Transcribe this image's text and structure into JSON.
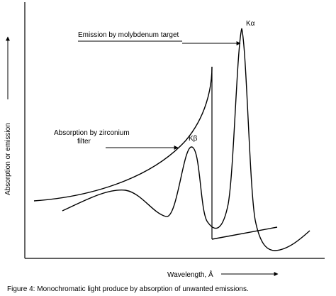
{
  "chart_data": {
    "type": "line",
    "title": "",
    "xlabel": "Wavelength, Å",
    "ylabel": "Absorption or emission",
    "caption": "Figure 4: Monochromatic light produce by absorption of unwanted emissions.",
    "grid": false,
    "legend": "none",
    "colors": {
      "line": "#000000",
      "background": "#ffffff"
    },
    "annotations": {
      "emission_label": "Emission by molybdenum target",
      "absorption_label_line1": "Absorption by zirconium",
      "absorption_label_line2": "filter",
      "k_alpha": "Kα",
      "k_beta": "Kβ"
    },
    "series": [
      {
        "role": "emission-spectrum"
      },
      {
        "role": "absorption-curve"
      }
    ]
  }
}
